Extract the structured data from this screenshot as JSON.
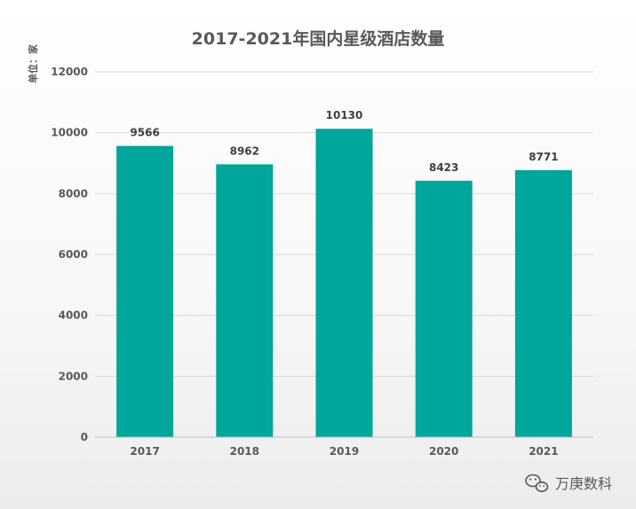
{
  "chart_data": {
    "type": "bar",
    "title": "2017-2021年国内星级酒店数量",
    "unit_label": "单位：家",
    "categories": [
      "2017",
      "2018",
      "2019",
      "2020",
      "2021"
    ],
    "values": [
      9566,
      8962,
      10130,
      8423,
      8771
    ],
    "data_labels": [
      "9566",
      "8962",
      "10130",
      "8423",
      "8771"
    ],
    "yticks": [
      "0",
      "2000",
      "4000",
      "6000",
      "8000",
      "10000",
      "12000"
    ],
    "ylim": [
      0,
      12000
    ],
    "xlabel": "",
    "ylabel": "",
    "grid": true,
    "legend": "none",
    "bar_color": "#00a59b"
  },
  "watermark": {
    "text": "万庚数科",
    "icon": "wechat-icon"
  }
}
